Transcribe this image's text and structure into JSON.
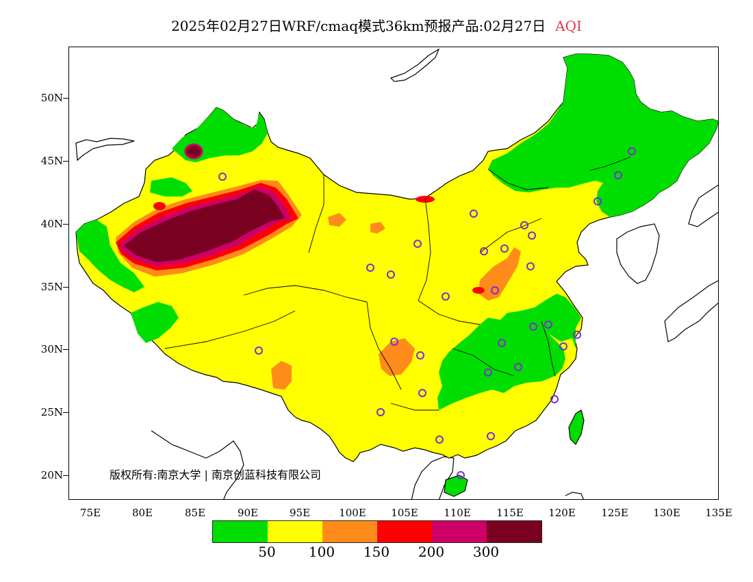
{
  "title": {
    "main": "2025年02月27日WRF/cmaq模式36km预报产品:02月27日",
    "variable": "AQI"
  },
  "map": {
    "lat_ticks": [
      "50N",
      "45N",
      "40N",
      "35N",
      "30N",
      "25N",
      "20N"
    ],
    "lon_ticks": [
      "75E",
      "80E",
      "85E",
      "90E",
      "95E",
      "100E",
      "105E",
      "110E",
      "115E",
      "120E",
      "125E",
      "130E",
      "135E"
    ],
    "copyright": "版权所有:南京大学",
    "copyright2": "南京创蓝科技有限公司",
    "station_marker_color": "#7a2fd0"
  },
  "legend": {
    "colors": [
      "#00dd00",
      "#ffff00",
      "#ff8c1a",
      "#ff0000",
      "#cc0066",
      "#7a0022"
    ],
    "labels": [
      "50",
      "100",
      "150",
      "200",
      "300"
    ]
  }
}
